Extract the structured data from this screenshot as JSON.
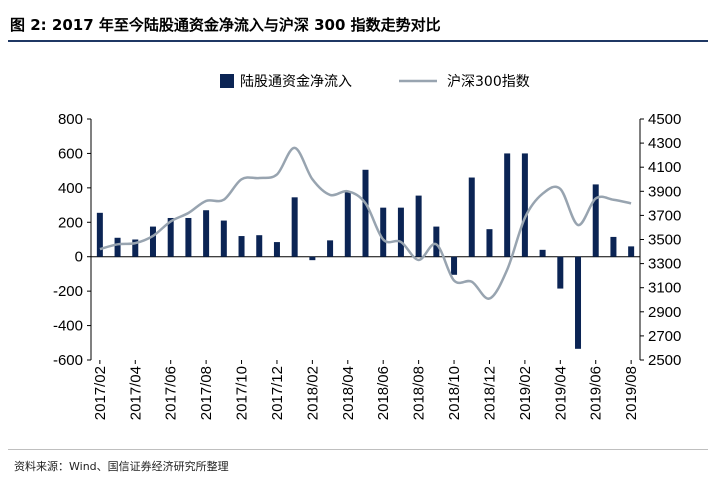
{
  "title": "图 2:  2017 年至今陆股通资金净流入与沪深 300 指数走势对比",
  "source": "资料来源：Wind、国信证券经济研究所整理",
  "colors": {
    "bar": "#0b2454",
    "line": "#98a4b0",
    "title_rule": "#1f3864"
  },
  "chart_data": {
    "type": "bar+line",
    "title": "图 2:  2017 年至今陆股通资金净流入与沪深 300 指数走势对比",
    "x_tick_labels": [
      "2017/02",
      "2017/04",
      "2017/06",
      "2017/08",
      "2017/10",
      "2017/12",
      "2018/02",
      "2018/04",
      "2018/06",
      "2018/08",
      "2018/10",
      "2018/12",
      "2019/02",
      "2019/04",
      "2019/06",
      "2019/08"
    ],
    "categories": [
      "2017/02",
      "2017/03",
      "2017/04",
      "2017/05",
      "2017/06",
      "2017/07",
      "2017/08",
      "2017/09",
      "2017/10",
      "2017/11",
      "2017/12",
      "2018/01",
      "2018/02",
      "2018/03",
      "2018/04",
      "2018/05",
      "2018/06",
      "2018/07",
      "2018/08",
      "2018/09",
      "2018/10",
      "2018/11",
      "2018/12",
      "2019/01",
      "2019/02",
      "2019/03",
      "2019/04",
      "2019/05",
      "2019/06",
      "2019/07",
      "2019/08"
    ],
    "series": [
      {
        "name": "陆股通资金净流入",
        "type": "bar",
        "axis": "left",
        "values": [
          255,
          110,
          100,
          175,
          225,
          225,
          270,
          210,
          120,
          125,
          85,
          345,
          -20,
          95,
          380,
          505,
          285,
          285,
          355,
          175,
          -105,
          460,
          160,
          600,
          600,
          40,
          -185,
          -535,
          420,
          115,
          60
        ]
      },
      {
        "name": "沪深300指数",
        "type": "line",
        "axis": "right",
        "values": [
          3420,
          3460,
          3470,
          3530,
          3650,
          3720,
          3820,
          3830,
          4000,
          4010,
          4040,
          4260,
          4000,
          3870,
          3900,
          3800,
          3500,
          3480,
          3330,
          3460,
          3160,
          3150,
          3010,
          3250,
          3680,
          3880,
          3920,
          3620,
          3840,
          3830,
          3800
        ]
      }
    ],
    "y_left": {
      "min": -600,
      "max": 800,
      "ticks": [
        800,
        600,
        400,
        200,
        0,
        -200,
        -400,
        -600
      ]
    },
    "y_right": {
      "min": 2500,
      "max": 4500,
      "ticks": [
        4500,
        4300,
        4100,
        3900,
        3700,
        3500,
        3300,
        3100,
        2900,
        2700,
        2500
      ]
    },
    "legend": {
      "position": "top-center",
      "items": [
        "陆股通资金净流入",
        "沪深300指数"
      ]
    },
    "grid": false
  }
}
